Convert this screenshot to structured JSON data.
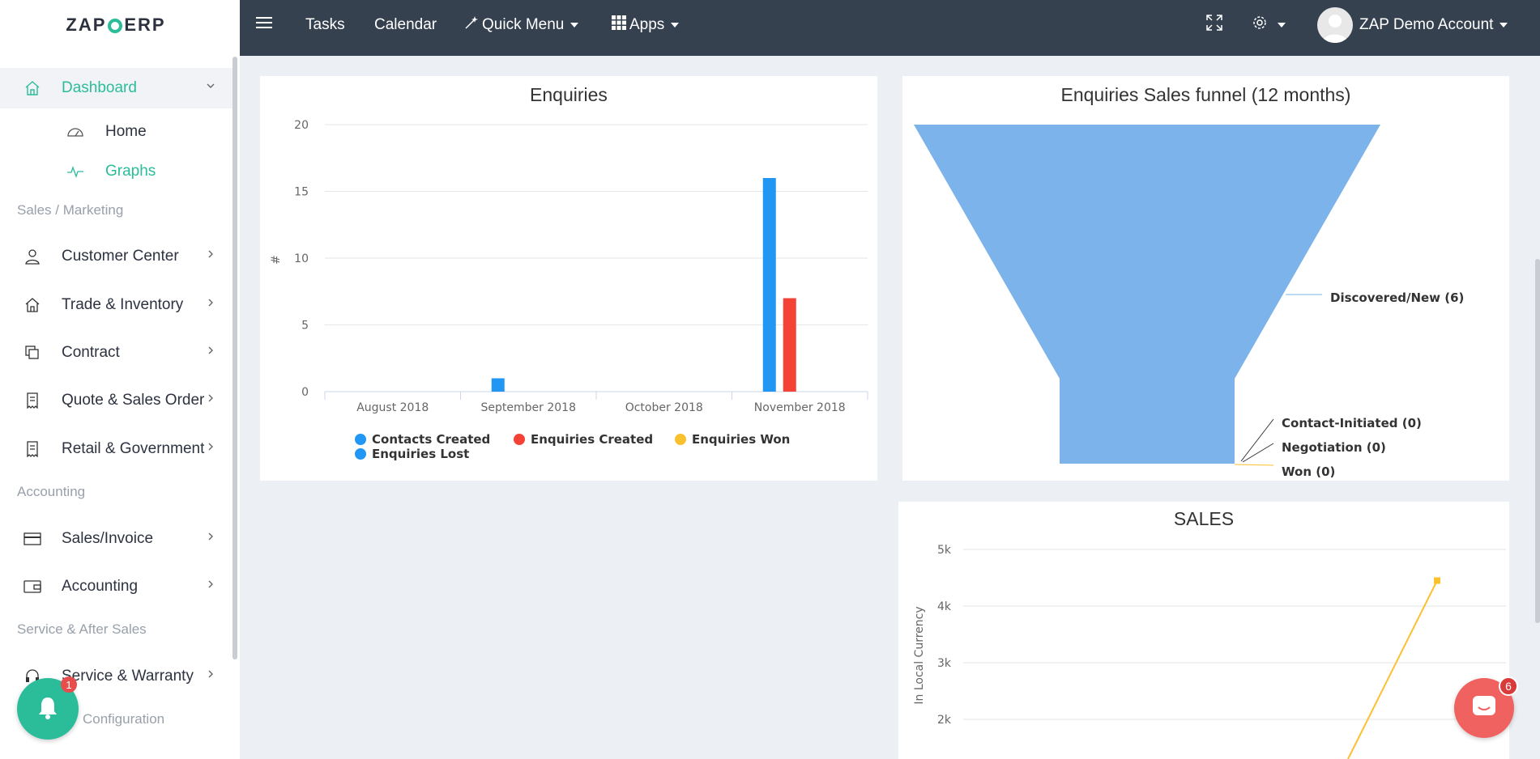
{
  "app": {
    "logo_left": "ZAP",
    "logo_right": "ERP"
  },
  "topbar": {
    "tasks": "Tasks",
    "calendar": "Calendar",
    "quick_menu": "Quick Menu",
    "apps": "Apps",
    "account": "ZAP Demo Account"
  },
  "sidebar": {
    "dashboard": "Dashboard",
    "home": "Home",
    "graphs": "Graphs",
    "section_sales": "Sales / Marketing",
    "customer_center": "Customer Center",
    "trade_inventory": "Trade & Inventory",
    "contract": "Contract",
    "quote_sales_order": "Quote & Sales Order",
    "retail_government": "Retail & Government",
    "section_accounting": "Accounting",
    "sales_invoice": "Sales/Invoice",
    "accounting": "Accounting",
    "section_service": "Service & After Sales",
    "service_warranty": "Service & Warranty",
    "configuration": "Configuration",
    "notification_count": "1"
  },
  "chat": {
    "badge": "6"
  },
  "colors": {
    "accent": "#2bbd9a",
    "topbar": "#364150",
    "blue": "#2196f3",
    "red": "#f44336",
    "yellow": "#fbc02d",
    "funnel": "#7cb3ea"
  },
  "chart_data": [
    {
      "type": "bar",
      "title": "Enquiries",
      "ylabel": "#",
      "ylim": [
        0,
        20
      ],
      "yticks": [
        "0",
        "5",
        "10",
        "15",
        "20"
      ],
      "categories": [
        "August 2018",
        "September 2018",
        "October 2018",
        "November 2018"
      ],
      "series": [
        {
          "name": "Contacts Created",
          "color": "#2196f3",
          "values": [
            0,
            1,
            0,
            16
          ]
        },
        {
          "name": "Enquiries Created",
          "color": "#f44336",
          "values": [
            0,
            0,
            0,
            7
          ]
        },
        {
          "name": "Enquiries Won",
          "color": "#fbc02d",
          "values": [
            0,
            0,
            0,
            0
          ]
        },
        {
          "name": "Enquiries Lost",
          "color": "#2196f3",
          "values": [
            0,
            0,
            0,
            0
          ]
        }
      ]
    },
    {
      "type": "funnel",
      "title": "Enquiries Sales funnel (12 months)",
      "stages": [
        {
          "label": "Discovered/New (6)",
          "value": 6
        },
        {
          "label": "Contact-Initiated (0)",
          "value": 0
        },
        {
          "label": "Negotiation (0)",
          "value": 0
        },
        {
          "label": "Won (0)",
          "value": 0
        }
      ]
    },
    {
      "type": "line",
      "title": "SALES",
      "ylabel": "In Local Currency",
      "yticks": [
        "2k",
        "3k",
        "4k",
        "5k"
      ],
      "series": [
        {
          "color": "#fbc02d",
          "last_value": 4450
        }
      ]
    }
  ]
}
